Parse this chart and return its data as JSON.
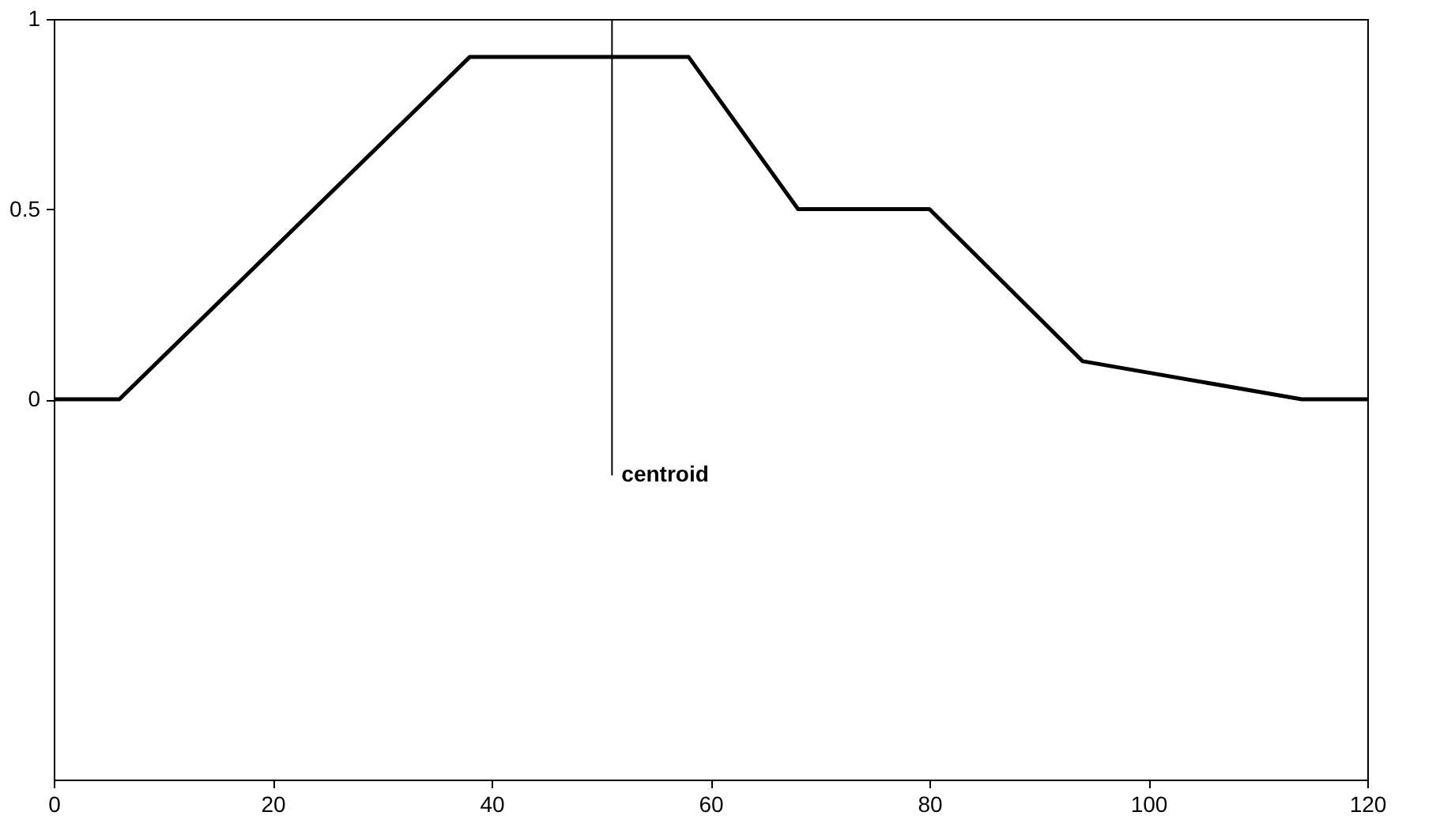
{
  "chart_data": {
    "type": "line",
    "x": [
      0,
      6,
      38,
      58,
      68,
      80,
      94,
      114,
      120
    ],
    "series": [
      {
        "color": "#000000",
        "values": [
          0,
          0,
          0.9,
          0.9,
          0.5,
          0.5,
          0.1,
          0,
          0
        ]
      }
    ],
    "xlim": [
      0,
      120
    ],
    "xticks": [
      0,
      20,
      40,
      60,
      80,
      100,
      120
    ],
    "ylim": [
      -1,
      1
    ],
    "yticks": [
      0,
      0.5,
      1
    ],
    "grid": false,
    "marker": "none",
    "line_style": "solid",
    "ref_lines": [
      {
        "axis": "x",
        "value": 51,
        "color": "#000000"
      }
    ],
    "annotations": [
      {
        "text": "centroid",
        "x": 51,
        "y": -0.2
      }
    ]
  }
}
